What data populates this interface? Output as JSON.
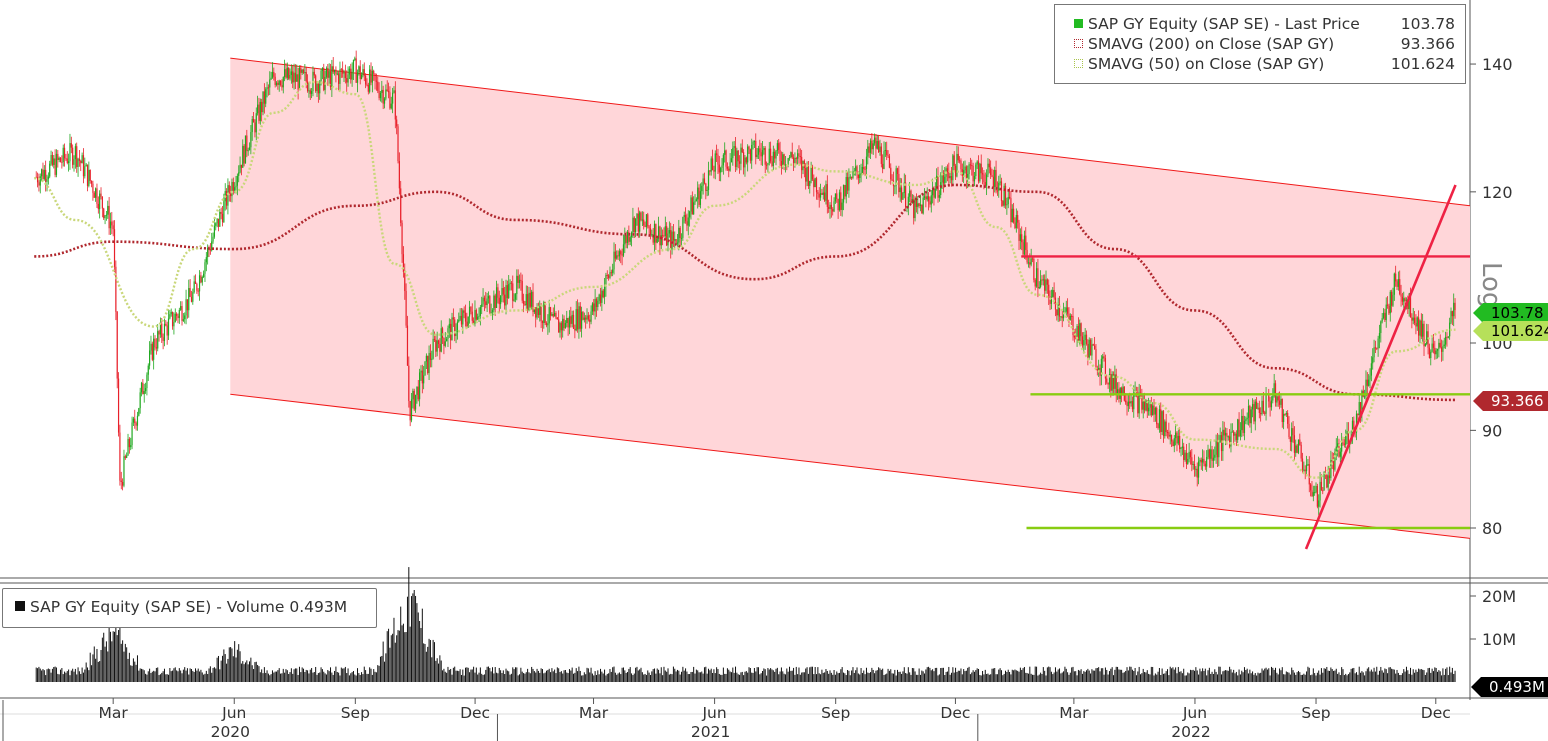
{
  "legend": {
    "price": {
      "label": "SAP GY Equity (SAP SE) - Last Price",
      "value": "103.78",
      "color": "#22bb22"
    },
    "sma200": {
      "label": "SMAVG (200)  on Close (SAP GY)",
      "value": "93.366",
      "color": "#b0282e"
    },
    "sma50": {
      "label": "SMAVG (50)  on Close (SAP GY)",
      "value": "101.624",
      "color": "#a8c44a"
    }
  },
  "axis_side_label": "Log",
  "tags": {
    "price": "103.78",
    "sma50": "101.624",
    "sma200": "93.366",
    "volume": "0.493M"
  },
  "volume_legend": "SAP GY Equity (SAP SE) - Volume 0.493M",
  "chart_data": [
    {
      "type": "candlestick",
      "title": "",
      "scale": "log",
      "y_ticks": [
        80,
        90,
        100,
        120,
        140
      ],
      "ylim": [
        72,
        150
      ],
      "x_months": [
        "Mar",
        "Jun",
        "Sep",
        "Dec",
        "Mar",
        "Jun",
        "Sep",
        "Dec",
        "Mar",
        "Jun",
        "Sep",
        "Dec"
      ],
      "x_years": [
        "2020",
        "2021",
        "2022"
      ],
      "last_price": 103.78,
      "series": [
        {
          "name": "SAP GY Equity (SAP SE) - Last Price",
          "x": [
            "2020-01",
            "2020-02",
            "2020-03",
            "2020-03-20",
            "2020-04",
            "2020-05",
            "2020-06",
            "2020-07",
            "2020-08",
            "2020-09",
            "2020-10",
            "2020-10-26",
            "2020-11",
            "2020-12",
            "2021-01",
            "2021-02",
            "2021-03",
            "2021-04",
            "2021-05",
            "2021-06",
            "2021-07",
            "2021-08",
            "2021-09",
            "2021-10",
            "2021-11",
            "2021-12",
            "2022-01",
            "2022-02",
            "2022-03",
            "2022-04",
            "2022-05",
            "2022-06",
            "2022-07",
            "2022-08",
            "2022-09",
            "2022-10",
            "2022-11",
            "2022-12",
            "2022-12-30"
          ],
          "values": [
            122,
            126,
            115,
            84,
            100,
            106,
            122,
            138,
            137,
            139,
            134,
            92,
            100,
            104,
            107,
            102,
            104,
            116,
            113,
            124,
            126,
            125,
            118,
            127,
            117,
            124,
            122,
            108,
            102,
            95,
            92,
            86,
            90,
            94,
            83,
            91,
            108,
            98,
            104
          ]
        },
        {
          "name": "SMAVG (200)  on Close (SAP GY)",
          "x": [
            "2020-01",
            "2020-03",
            "2020-06",
            "2020-09",
            "2020-11",
            "2021-01",
            "2021-04",
            "2021-07",
            "2021-09",
            "2021-12",
            "2022-02",
            "2022-04",
            "2022-06",
            "2022-08",
            "2022-10",
            "2022-12-30"
          ],
          "values": [
            111,
            113,
            112,
            118,
            120,
            116,
            114,
            108,
            111,
            121,
            120,
            112,
            104,
            97,
            94,
            93.366
          ]
        },
        {
          "name": "SMAVG (50)  on Close (SAP GY)",
          "x": [
            "2020-01",
            "2020-02",
            "2020-04",
            "2020-05",
            "2020-06",
            "2020-07",
            "2020-08",
            "2020-09",
            "2020-10",
            "2020-11",
            "2021-01",
            "2021-03",
            "2021-05",
            "2021-06",
            "2021-08",
            "2021-09",
            "2021-11",
            "2021-12",
            "2022-01",
            "2022-02",
            "2022-04",
            "2022-05",
            "2022-06",
            "2022-08",
            "2022-09",
            "2022-10",
            "2022-11",
            "2022-12-30"
          ],
          "values": [
            122,
            116,
            102,
            112,
            120,
            132,
            137,
            135,
            110,
            101,
            104,
            107,
            112,
            118,
            124,
            123,
            121,
            123,
            115,
            106,
            96,
            93,
            89,
            88,
            85,
            90,
            99,
            101.624
          ]
        }
      ],
      "annotations": [
        {
          "type": "downtrend_channel",
          "upper": [
            141,
            118
          ],
          "lower": [
            94,
            79
          ]
        },
        {
          "type": "horizontal_line",
          "value": 111,
          "color": "#ee2244"
        },
        {
          "type": "horizontal_line",
          "value": 94,
          "color": "#88cc11"
        },
        {
          "type": "horizontal_line",
          "value": 80,
          "color": "#88cc11"
        },
        {
          "type": "trend_line",
          "from": [
            "2022-09",
            78
          ],
          "to": [
            "2022-12-30",
            121
          ],
          "color": "#ee2244"
        }
      ]
    },
    {
      "type": "bar",
      "title": "",
      "y_ticks": [
        "10M",
        "20M"
      ],
      "series": [
        {
          "name": "SAP GY Equity (SAP SE) - Volume",
          "x": [
            "2020-03",
            "2020-06",
            "2020-10-26",
            "2021",
            "2022",
            "2022-12-30"
          ],
          "values": [
            13.5,
            9,
            23,
            3,
            3,
            0.493
          ]
        }
      ]
    }
  ]
}
